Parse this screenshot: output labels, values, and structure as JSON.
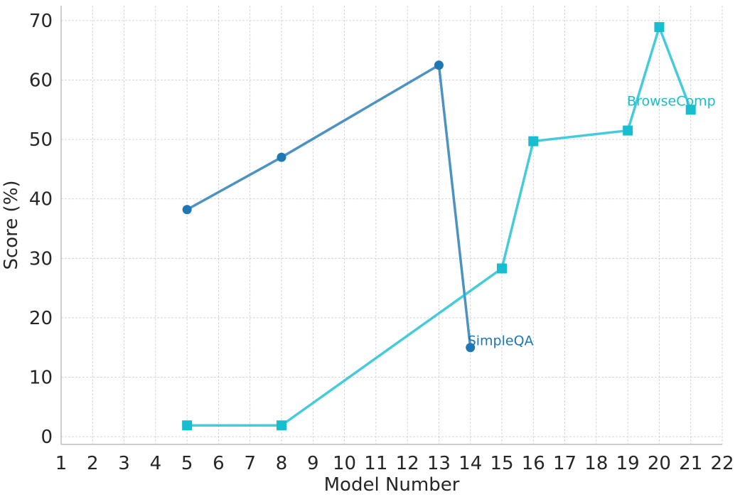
{
  "chart_data": {
    "type": "line",
    "xlabel": "Model Number",
    "ylabel": "Score (%)",
    "xlim": [
      1,
      22
    ],
    "ylim": [
      -1.3,
      72.5
    ],
    "x_ticks": [
      1,
      2,
      3,
      4,
      5,
      6,
      7,
      8,
      9,
      10,
      11,
      12,
      13,
      14,
      15,
      16,
      17,
      18,
      19,
      20,
      21,
      22
    ],
    "y_ticks": [
      0,
      10,
      20,
      30,
      40,
      50,
      60,
      70
    ],
    "grid": true,
    "legend": "none",
    "series": [
      {
        "name": "SimpleQA",
        "color": "#1f77b4",
        "marker": "circle",
        "points": [
          [
            5,
            38.2
          ],
          [
            8,
            47.0
          ],
          [
            13,
            62.5
          ],
          [
            14,
            15.0
          ]
        ]
      },
      {
        "name": "BrowseComp",
        "color": "#17becf",
        "marker": "square",
        "points": [
          [
            5,
            1.9
          ],
          [
            8,
            1.9
          ],
          [
            15,
            28.3
          ],
          [
            16,
            49.7
          ],
          [
            19,
            51.5
          ],
          [
            20,
            68.9
          ],
          [
            21,
            55.0
          ]
        ]
      }
    ]
  }
}
